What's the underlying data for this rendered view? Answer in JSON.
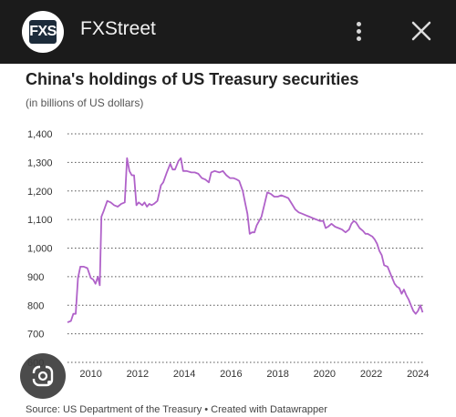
{
  "app": {
    "name": "FXStreet",
    "logo_text": "FXS"
  },
  "icons": {
    "menu": "more-vert-icon",
    "close": "close-icon",
    "lens": "google-lens-icon"
  },
  "chart_data": {
    "type": "line",
    "title": "China's holdings of US Treasury securities",
    "subtitle": "(in billions of US dollars)",
    "ylim": [
      600,
      1400
    ],
    "yticks": [
      600,
      700,
      800,
      900,
      1000,
      1100,
      1200,
      1300,
      1400
    ],
    "ytick_labels": [
      "600",
      "700",
      "800",
      "900",
      "1,000",
      "1,100",
      "1,200",
      "1,300",
      "1,400"
    ],
    "xlim": [
      2009.0,
      2024.3
    ],
    "xticks": [
      2010,
      2012,
      2014,
      2016,
      2018,
      2020,
      2022,
      2024
    ],
    "xtick_labels": [
      "2010",
      "2012",
      "2014",
      "2016",
      "2018",
      "2020",
      "2022",
      "2024"
    ],
    "grid": true,
    "color": "#b062c9",
    "series": [
      {
        "points": [
          [
            2009.0,
            740
          ],
          [
            2009.15,
            745
          ],
          [
            2009.25,
            770
          ],
          [
            2009.35,
            770
          ],
          [
            2009.45,
            895
          ],
          [
            2009.55,
            935
          ],
          [
            2009.7,
            935
          ],
          [
            2009.85,
            930
          ],
          [
            2010.0,
            895
          ],
          [
            2010.1,
            890
          ],
          [
            2010.2,
            875
          ],
          [
            2010.3,
            900
          ],
          [
            2010.38,
            870
          ],
          [
            2010.45,
            1110
          ],
          [
            2010.55,
            1130
          ],
          [
            2010.7,
            1165
          ],
          [
            2010.85,
            1160
          ],
          [
            2011.0,
            1150
          ],
          [
            2011.15,
            1145
          ],
          [
            2011.3,
            1155
          ],
          [
            2011.45,
            1160
          ],
          [
            2011.55,
            1315
          ],
          [
            2011.65,
            1270
          ],
          [
            2011.75,
            1255
          ],
          [
            2011.85,
            1255
          ],
          [
            2011.95,
            1150
          ],
          [
            2012.05,
            1160
          ],
          [
            2012.2,
            1150
          ],
          [
            2012.3,
            1160
          ],
          [
            2012.4,
            1145
          ],
          [
            2012.5,
            1155
          ],
          [
            2012.6,
            1150
          ],
          [
            2012.7,
            1155
          ],
          [
            2012.85,
            1165
          ],
          [
            2013.0,
            1220
          ],
          [
            2013.1,
            1230
          ],
          [
            2013.25,
            1265
          ],
          [
            2013.4,
            1295
          ],
          [
            2013.5,
            1275
          ],
          [
            2013.6,
            1275
          ],
          [
            2013.75,
            1305
          ],
          [
            2013.85,
            1315
          ],
          [
            2013.95,
            1270
          ],
          [
            2014.1,
            1270
          ],
          [
            2014.3,
            1265
          ],
          [
            2014.45,
            1265
          ],
          [
            2014.6,
            1260
          ],
          [
            2014.75,
            1245
          ],
          [
            2014.9,
            1240
          ],
          [
            2015.05,
            1230
          ],
          [
            2015.15,
            1265
          ],
          [
            2015.3,
            1270
          ],
          [
            2015.5,
            1265
          ],
          [
            2015.65,
            1270
          ],
          [
            2015.8,
            1255
          ],
          [
            2015.95,
            1245
          ],
          [
            2016.1,
            1245
          ],
          [
            2016.25,
            1240
          ],
          [
            2016.35,
            1235
          ],
          [
            2016.5,
            1200
          ],
          [
            2016.6,
            1160
          ],
          [
            2016.7,
            1120
          ],
          [
            2016.8,
            1050
          ],
          [
            2016.9,
            1055
          ],
          [
            2017.0,
            1055
          ],
          [
            2017.1,
            1080
          ],
          [
            2017.2,
            1095
          ],
          [
            2017.3,
            1110
          ],
          [
            2017.45,
            1160
          ],
          [
            2017.55,
            1195
          ],
          [
            2017.7,
            1190
          ],
          [
            2017.85,
            1180
          ],
          [
            2018.0,
            1180
          ],
          [
            2018.15,
            1185
          ],
          [
            2018.3,
            1180
          ],
          [
            2018.45,
            1175
          ],
          [
            2018.6,
            1155
          ],
          [
            2018.75,
            1135
          ],
          [
            2018.9,
            1125
          ],
          [
            2019.05,
            1120
          ],
          [
            2019.2,
            1115
          ],
          [
            2019.35,
            1110
          ],
          [
            2019.5,
            1105
          ],
          [
            2019.65,
            1100
          ],
          [
            2019.8,
            1095
          ],
          [
            2019.95,
            1095
          ],
          [
            2020.05,
            1070
          ],
          [
            2020.15,
            1075
          ],
          [
            2020.3,
            1085
          ],
          [
            2020.45,
            1075
          ],
          [
            2020.6,
            1070
          ],
          [
            2020.75,
            1065
          ],
          [
            2020.9,
            1055
          ],
          [
            2021.05,
            1065
          ],
          [
            2021.15,
            1085
          ],
          [
            2021.25,
            1095
          ],
          [
            2021.35,
            1090
          ],
          [
            2021.5,
            1070
          ],
          [
            2021.65,
            1060
          ],
          [
            2021.75,
            1050
          ],
          [
            2021.85,
            1050
          ],
          [
            2021.95,
            1045
          ],
          [
            2022.05,
            1040
          ],
          [
            2022.15,
            1030
          ],
          [
            2022.25,
            1015
          ],
          [
            2022.35,
            990
          ],
          [
            2022.45,
            975
          ],
          [
            2022.55,
            940
          ],
          [
            2022.7,
            935
          ],
          [
            2022.85,
            905
          ],
          [
            2023.0,
            875
          ],
          [
            2023.1,
            865
          ],
          [
            2023.2,
            860
          ],
          [
            2023.3,
            840
          ],
          [
            2023.4,
            855
          ],
          [
            2023.5,
            835
          ],
          [
            2023.6,
            820
          ],
          [
            2023.7,
            800
          ],
          [
            2023.8,
            780
          ],
          [
            2023.9,
            770
          ],
          [
            2024.0,
            780
          ],
          [
            2024.1,
            800
          ],
          [
            2024.2,
            775
          ]
        ]
      }
    ]
  },
  "footer": {
    "source": "Source: US Department of the Treasury • Created with Datawrapper"
  }
}
